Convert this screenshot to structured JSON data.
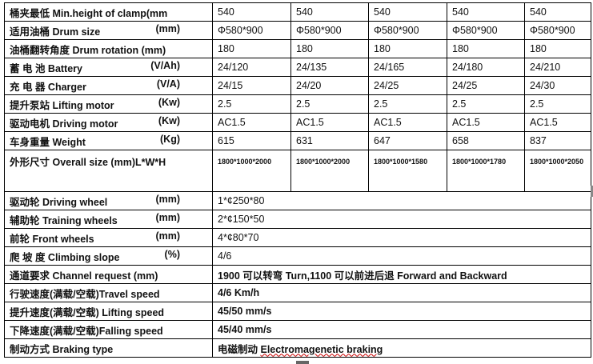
{
  "multi_rows": [
    {
      "label": "桶夹最低 Min.height of clamp(mm",
      "unit": "",
      "values": [
        "540",
        "540",
        "540",
        "540",
        "540"
      ]
    },
    {
      "label": "适用油桶 Drum size",
      "unit": "(mm)",
      "values": [
        "Φ580*900",
        "Φ580*900",
        "Φ580*900",
        "Φ580*900",
        "Φ580*900"
      ]
    },
    {
      "label": "油桶翻转角度 Drum rotation (mm)",
      "unit": "",
      "values": [
        "180",
        "180",
        "180",
        "180",
        "180"
      ]
    },
    {
      "label": "蓄 电 池 Battery",
      "unit": "(V/Ah)",
      "values": [
        "24/120",
        "24/135",
        "24/165",
        "24/180",
        "24/210"
      ]
    },
    {
      "label": "充 电 器 Charger",
      "unit": "(V/A)",
      "values": [
        "24/15",
        "24/20",
        "24/25",
        "24/25",
        "24/30"
      ]
    },
    {
      "label": "提升泵站 Lifting motor",
      "unit": "(Kw)",
      "values": [
        "2.5",
        "2.5",
        "2.5",
        "2.5",
        "2.5"
      ]
    },
    {
      "label": "驱动电机 Driving motor",
      "unit": "(Kw)",
      "values": [
        "AC1.5",
        "AC1.5",
        "AC1.5",
        "AC1.5",
        "AC1.5"
      ]
    },
    {
      "label": "车身重量 Weight",
      "unit": "(Kg)",
      "values": [
        "615",
        "631",
        "647",
        "658",
        "837"
      ]
    }
  ],
  "overall": {
    "label": "外形尺寸 Overall size (mm)L*W*H",
    "values": [
      "1800*1000*2000",
      "1800*1000*2000",
      "1800*1000*1580",
      "1800*1000*1780",
      "1800*1000*2050"
    ]
  },
  "single_rows": [
    {
      "label": "驱动轮  Driving wheel",
      "unit": "(mm)",
      "value": "1*¢250*80"
    },
    {
      "label": "辅助轮  Training wheels",
      "unit": "(mm)",
      "value": "2*¢150*50"
    },
    {
      "label": "前轮 Front wheels",
      "unit": "(mm)",
      "value": "4*¢80*70"
    },
    {
      "label": "爬 坡 度 Climbing slope",
      "unit": "(%)",
      "value": "4/6"
    },
    {
      "label": "通道要求 Channel request (mm)",
      "unit": "",
      "value": "1900 可以转弯 Turn,1100 可以前进后退 Forward and Backward"
    },
    {
      "label": "行驶速度(满载/空载)Travel speed",
      "unit": "",
      "value": "4/6 Km/h"
    },
    {
      "label": "提升速度(满载/空载) Lifting speed",
      "unit": "",
      "value": "45/50 mm/s"
    },
    {
      "label": "下降速度(满载/空载)Falling speed",
      "unit": "",
      "value": "45/40 mm/s"
    }
  ],
  "braking": {
    "label": "制动方式 Braking type",
    "value_cn": "电磁制动 ",
    "value_en": "Electromagenetic braking"
  }
}
